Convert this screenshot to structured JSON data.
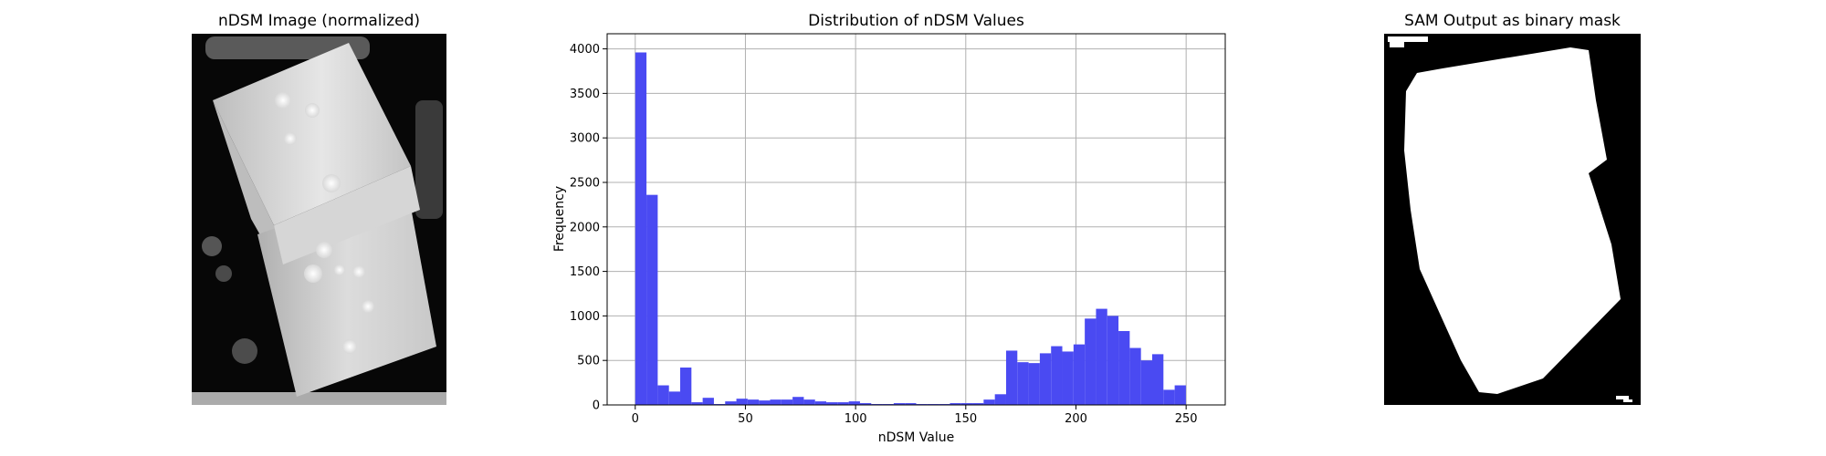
{
  "figure": {
    "panels": [
      {
        "title": "nDSM Image (normalized)",
        "image_description": "grayscale normalized nDSM raster of a rectangular building rotated about 20 degrees; light gray roof with bright spots, dark background"
      },
      {
        "title": "Distribution of nDSM Values"
      },
      {
        "title": "SAM Output as binary mask",
        "image_description": "binary mask: white rotated rectangle of the building on black background"
      }
    ]
  },
  "chart_data": [
    {
      "type": "image",
      "title": "nDSM Image (normalized)",
      "colormap": "gray"
    },
    {
      "type": "bar",
      "title": "Distribution of nDSM Values",
      "xlabel": "nDSM Value",
      "ylabel": "Frequency",
      "bar_color": "#4a4af2",
      "grid": true,
      "xlim": [
        -12.75,
        267.75
      ],
      "ylim": [
        0,
        4170
      ],
      "xticks": [
        0,
        50,
        100,
        150,
        200,
        250
      ],
      "yticks": [
        0,
        500,
        1000,
        1500,
        2000,
        2500,
        3000,
        3500,
        4000
      ],
      "bin_width": 5.1,
      "bin_start": 0,
      "values": [
        3960,
        2360,
        220,
        150,
        420,
        30,
        80,
        10,
        40,
        70,
        60,
        50,
        60,
        60,
        90,
        60,
        40,
        30,
        30,
        40,
        20,
        10,
        10,
        20,
        20,
        10,
        10,
        10,
        20,
        20,
        20,
        60,
        120,
        610,
        480,
        470,
        580,
        660,
        600,
        680,
        970,
        1080,
        1000,
        830,
        640,
        500,
        570,
        170,
        220,
        0
      ]
    },
    {
      "type": "image",
      "title": "SAM Output as binary mask",
      "colormap": "binary"
    }
  ]
}
